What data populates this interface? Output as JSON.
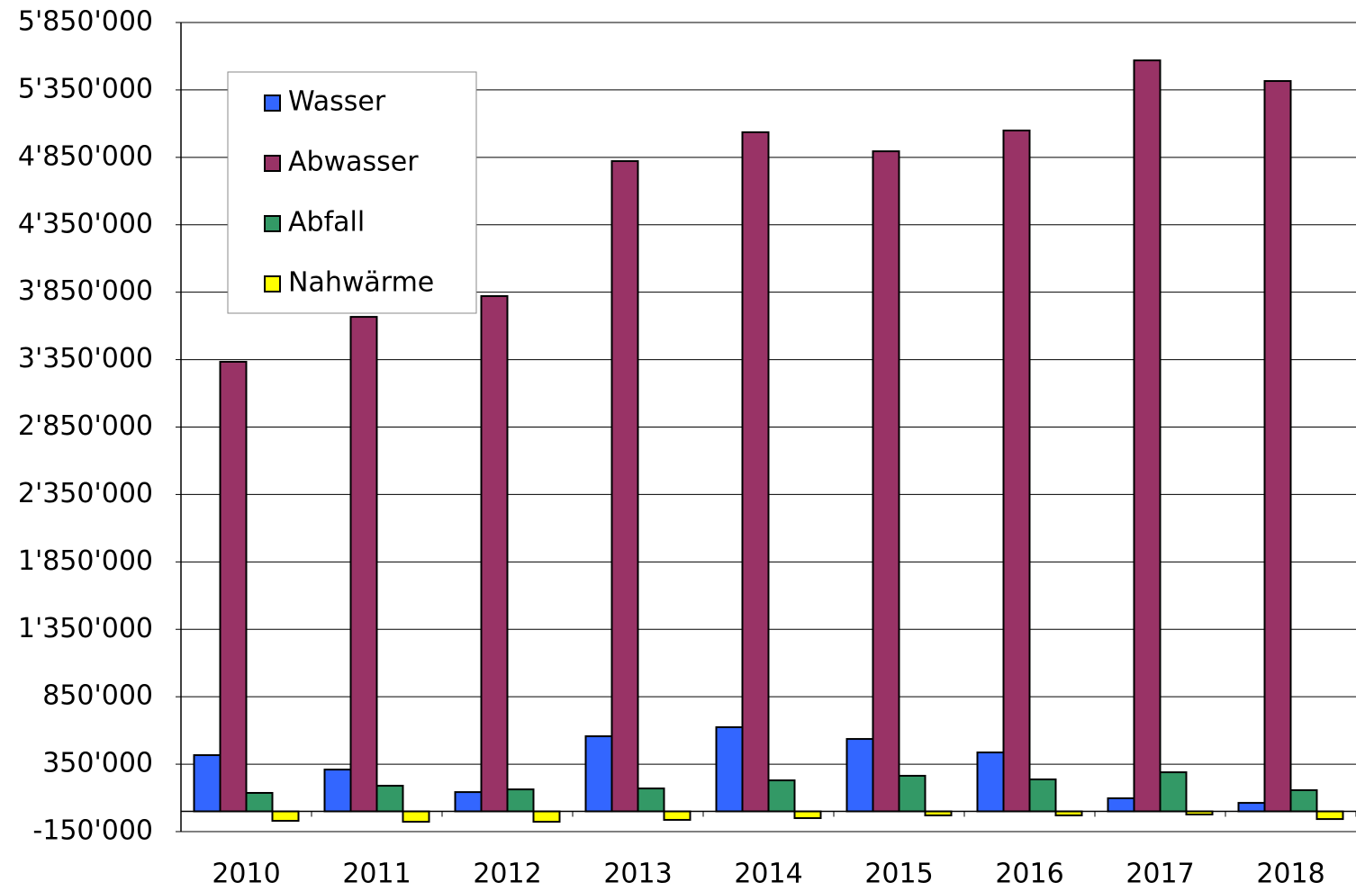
{
  "chart_data": {
    "type": "bar",
    "categories": [
      "2010",
      "2011",
      "2012",
      "2013",
      "2014",
      "2015",
      "2016",
      "2017",
      "2018"
    ],
    "series": [
      {
        "name": "Wasser",
        "color": "#3366ff",
        "values": [
          417000,
          310000,
          143000,
          557000,
          624000,
          537000,
          437000,
          97000,
          63000
        ]
      },
      {
        "name": "Abwasser",
        "color": "#993366",
        "values": [
          3334000,
          3667000,
          3821000,
          4822000,
          5036000,
          4895000,
          5049000,
          5569000,
          5416000
        ]
      },
      {
        "name": "Abfall",
        "color": "#339966",
        "values": [
          137000,
          190000,
          163000,
          170000,
          230000,
          264000,
          237000,
          290000,
          157000
        ]
      },
      {
        "name": "Nahwärme",
        "color": "#ffff00",
        "values": [
          -70000,
          -77000,
          -77000,
          -63000,
          -50000,
          -30000,
          -30000,
          -23000,
          -57000
        ]
      }
    ],
    "ylim": [
      -150000,
      5850000
    ],
    "yticks": [
      {
        "value": -150000,
        "label": "-150'000"
      },
      {
        "value": 350000,
        "label": "350'000"
      },
      {
        "value": 850000,
        "label": "850'000"
      },
      {
        "value": 1350000,
        "label": "1'350'000"
      },
      {
        "value": 1850000,
        "label": "1'850'000"
      },
      {
        "value": 2350000,
        "label": "2'350'000"
      },
      {
        "value": 2850000,
        "label": "2'850'000"
      },
      {
        "value": 3350000,
        "label": "3'350'000"
      },
      {
        "value": 3850000,
        "label": "3'850'000"
      },
      {
        "value": 4350000,
        "label": "4'350'000"
      },
      {
        "value": 4850000,
        "label": "4'850'000"
      },
      {
        "value": 5350000,
        "label": "5'350'000"
      },
      {
        "value": 5850000,
        "label": "5'850'000"
      }
    ],
    "grid": true,
    "legend": "upper left"
  }
}
